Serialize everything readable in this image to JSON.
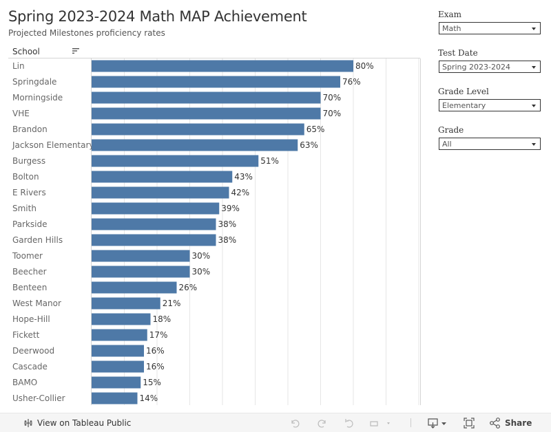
{
  "header": {
    "title": "Spring 2023-2024 Math MAP Achievement",
    "subtitle": "Projected Milestones proficiency rates",
    "column_header": "School"
  },
  "filters": [
    {
      "label": "Exam",
      "value": "Math"
    },
    {
      "label": "Test Date",
      "value": "Spring 2023-2024"
    },
    {
      "label": "Grade Level",
      "value": "Elementary"
    },
    {
      "label": "Grade",
      "value": "All"
    }
  ],
  "footer": {
    "view_label": "View on Tableau Public",
    "share_label": "Share"
  },
  "colors": {
    "bar": "#4e79a7",
    "grid": "#e6e6e6"
  },
  "chart_data": {
    "type": "bar",
    "orientation": "horizontal",
    "categories": [
      "Lin",
      "Springdale",
      "Morningside",
      "VHE",
      "Brandon",
      "Jackson Elementary",
      "Burgess",
      "Bolton",
      "E Rivers",
      "Smith",
      "Parkside",
      "Garden Hills",
      "Toomer",
      "Beecher",
      "Benteen",
      "West Manor",
      "Hope-Hill",
      "Fickett",
      "Deerwood",
      "Cascade",
      "BAMO",
      "Usher-Collier"
    ],
    "values": [
      80,
      76,
      70,
      70,
      65,
      63,
      51,
      43,
      42,
      39,
      38,
      38,
      30,
      30,
      26,
      21,
      18,
      17,
      16,
      16,
      15,
      14
    ],
    "data_labels": [
      "80%",
      "76%",
      "70%",
      "70%",
      "65%",
      "63%",
      "51%",
      "43%",
      "42%",
      "39%",
      "38%",
      "38%",
      "30%",
      "30%",
      "26%",
      "21%",
      "18%",
      "17%",
      "16%",
      "16%",
      "15%",
      "14%"
    ],
    "xlim": [
      0,
      100
    ],
    "grid": true,
    "sorted": "descending"
  }
}
